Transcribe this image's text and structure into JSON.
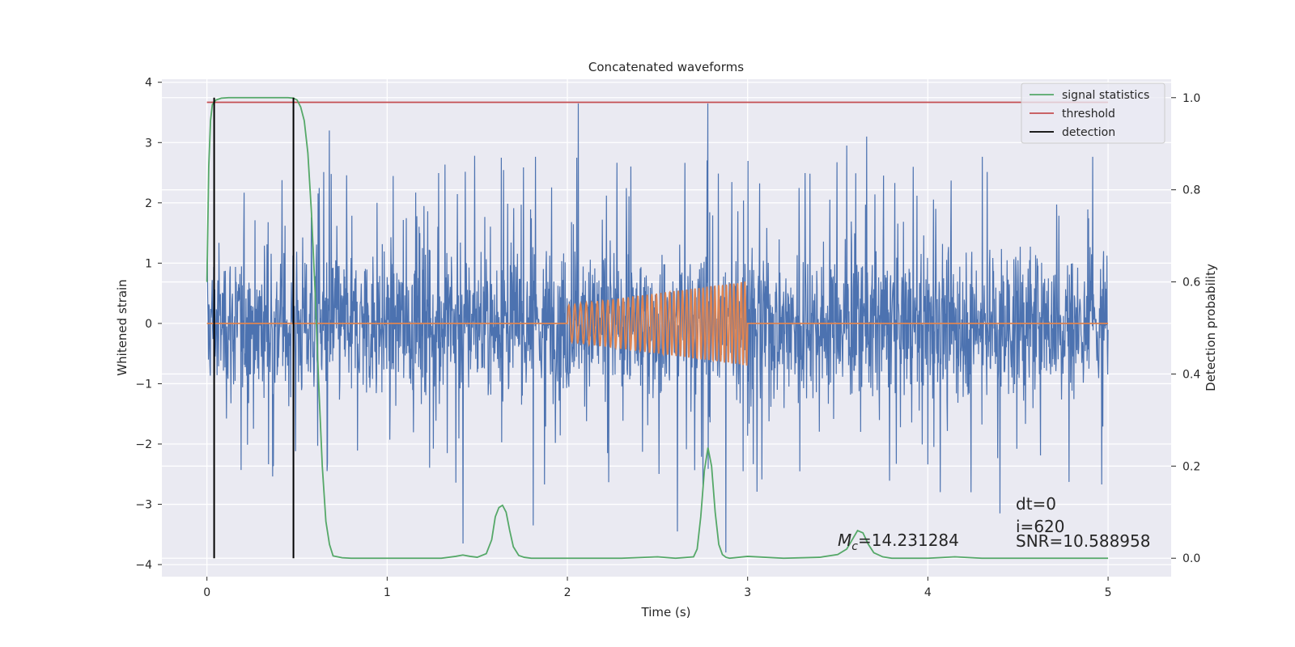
{
  "chart_data": {
    "type": "line",
    "title": "Concatenated waveforms",
    "xlabel": "Time (s)",
    "ylabel_left": "Whitened strain",
    "ylabel_right": "Detection probability",
    "xlim": [
      -0.25,
      5.35
    ],
    "ylim_left": [
      -4.2,
      4.05
    ],
    "ylim_right": [
      -0.04,
      1.04
    ],
    "xticks": [
      0,
      1,
      2,
      3,
      4,
      5
    ],
    "xtick_labels": [
      "0",
      "1",
      "2",
      "3",
      "4",
      "5"
    ],
    "yticks_left": [
      -4,
      -3,
      -2,
      -1,
      0,
      1,
      2,
      3,
      4
    ],
    "ytick_labels_left": [
      "−4",
      "−3",
      "−2",
      "−1",
      "0",
      "1",
      "2",
      "3",
      "4"
    ],
    "yticks_right": [
      0.0,
      0.2,
      0.4,
      0.6,
      0.8,
      1.0
    ],
    "ytick_labels_right": [
      "0.0",
      "0.2",
      "0.4",
      "0.6",
      "0.8",
      "1.0"
    ],
    "grid": true,
    "legend_position": "top-right",
    "background_color": "#eaeaf2",
    "series": [
      {
        "name": "",
        "axis": "left",
        "kind": "noise",
        "color": "#4c72b0",
        "x_range": [
          0,
          5
        ],
        "typical_peak": [
          -2.5,
          2.5
        ],
        "extreme_spikes": [
          {
            "x": 2.06,
            "y": 3.65
          },
          {
            "x": 2.78,
            "y": 3.65
          },
          {
            "x": 0.68,
            "y": 3.2
          },
          {
            "x": 1.42,
            "y": -3.65
          },
          {
            "x": 2.88,
            "y": -3.8
          },
          {
            "x": 4.4,
            "y": -3.15
          },
          {
            "x": 3.55,
            "y": 2.95
          },
          {
            "x": 1.81,
            "y": -3.35
          },
          {
            "x": 2.61,
            "y": -3.45
          },
          {
            "x": 4.24,
            "y": -2.8
          },
          {
            "x": 3.66,
            "y": 3.1
          }
        ]
      },
      {
        "name": "",
        "axis": "left",
        "kind": "chirp",
        "color": "#dd8452",
        "x_range": [
          0,
          5
        ],
        "chirp_range": [
          2.0,
          3.0
        ],
        "amplitude_start": 0.3,
        "amplitude_end": 0.7,
        "cycles": 40
      },
      {
        "name": "signal statistics",
        "axis": "right",
        "color": "#55a868",
        "x": [
          0.0,
          0.01,
          0.02,
          0.03,
          0.05,
          0.08,
          0.12,
          0.2,
          0.3,
          0.4,
          0.45,
          0.48,
          0.5,
          0.52,
          0.54,
          0.56,
          0.58,
          0.6,
          0.62,
          0.64,
          0.66,
          0.68,
          0.7,
          0.75,
          0.8,
          1.0,
          1.3,
          1.38,
          1.42,
          1.46,
          1.5,
          1.55,
          1.58,
          1.6,
          1.62,
          1.64,
          1.66,
          1.68,
          1.7,
          1.73,
          1.76,
          1.8,
          2.0,
          2.3,
          2.5,
          2.6,
          2.7,
          2.72,
          2.74,
          2.76,
          2.78,
          2.8,
          2.82,
          2.84,
          2.86,
          2.88,
          2.9,
          3.0,
          3.2,
          3.4,
          3.5,
          3.55,
          3.58,
          3.61,
          3.64,
          3.67,
          3.7,
          3.75,
          3.8,
          4.0,
          4.15,
          4.3,
          4.6,
          5.0
        ],
        "y": [
          0.6,
          0.85,
          0.95,
          0.985,
          0.995,
          0.999,
          1.0,
          1.0,
          1.0,
          1.0,
          1.0,
          0.999,
          0.995,
          0.98,
          0.95,
          0.88,
          0.75,
          0.58,
          0.38,
          0.2,
          0.08,
          0.03,
          0.005,
          0.001,
          0.0,
          0.0,
          0.0,
          0.004,
          0.007,
          0.004,
          0.002,
          0.01,
          0.04,
          0.09,
          0.11,
          0.115,
          0.1,
          0.06,
          0.025,
          0.006,
          0.002,
          0.0,
          0.0,
          0.0,
          0.003,
          0.0,
          0.003,
          0.02,
          0.09,
          0.19,
          0.24,
          0.2,
          0.1,
          0.03,
          0.008,
          0.002,
          0.0,
          0.004,
          0.0,
          0.002,
          0.008,
          0.02,
          0.04,
          0.06,
          0.055,
          0.03,
          0.012,
          0.003,
          0.0,
          0.0,
          0.003,
          0.0,
          0.0,
          0.0
        ]
      },
      {
        "name": "threshold",
        "axis": "right",
        "color": "#c44e52",
        "x": [
          0,
          5
        ],
        "y": [
          0.99,
          0.99
        ]
      },
      {
        "name": "detection",
        "axis": "right",
        "color": "#000000",
        "vlines": [
          0.04,
          0.48
        ],
        "y_span": [
          0.0,
          1.0
        ]
      }
    ],
    "annotations": {
      "dt": "dt=0",
      "i": "i=620",
      "snr": "SNR=10.588958",
      "mc_symbol": "M",
      "mc_subscript": "c",
      "mc_value": "=14.231284"
    }
  }
}
